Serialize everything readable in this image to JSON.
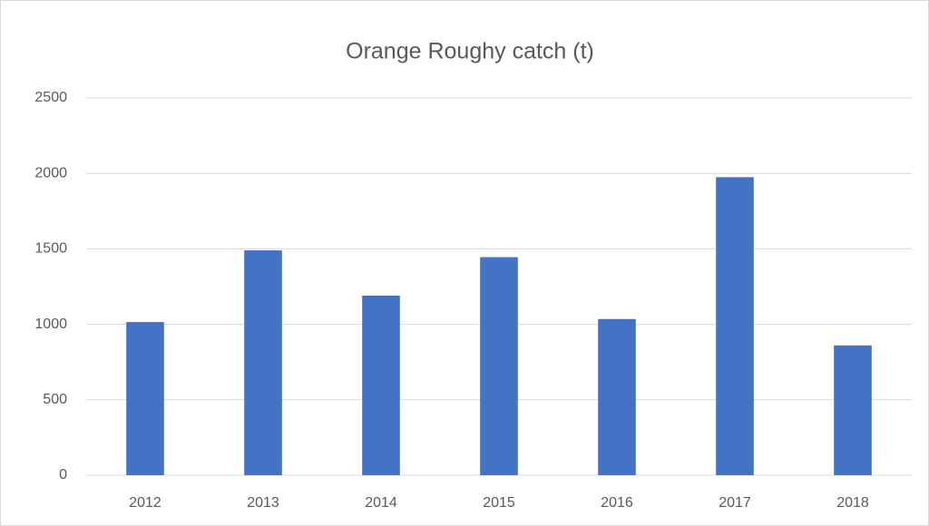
{
  "chart_data": {
    "type": "bar",
    "title": "Orange Roughy catch (t)",
    "categories": [
      "2012",
      "2013",
      "2014",
      "2015",
      "2016",
      "2017",
      "2018"
    ],
    "values": [
      1015,
      1490,
      1190,
      1445,
      1035,
      1975,
      860
    ],
    "color": "#4472c4",
    "ylim": [
      0,
      2500
    ],
    "yticks": [
      0,
      500,
      1000,
      1500,
      2000,
      2500
    ],
    "grid": true
  }
}
